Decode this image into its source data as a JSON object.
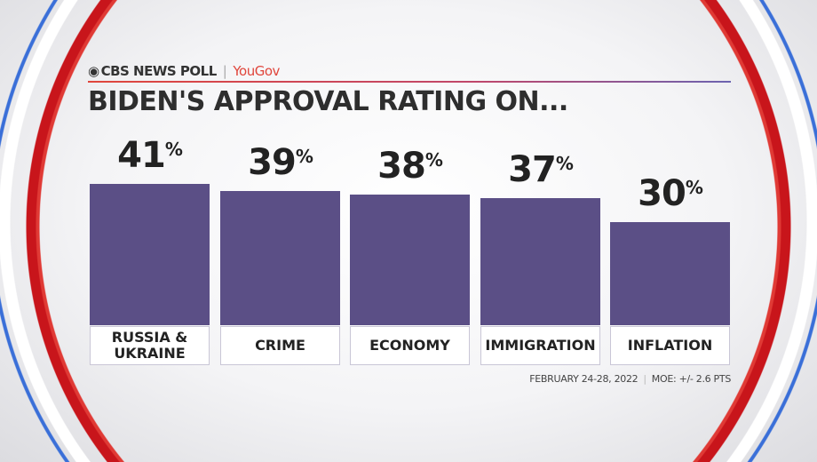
{
  "header": {
    "brand": "CBS NEWS POLL",
    "partner": "YouGov",
    "title": "BIDEN'S  APPROVAL RATING ON..."
  },
  "chart_data": {
    "type": "bar",
    "title": "BIDEN'S APPROVAL RATING ON...",
    "categories": [
      "RUSSIA & UKRAINE",
      "CRIME",
      "ECONOMY",
      "IMMIGRATION",
      "INFLATION"
    ],
    "values": [
      41,
      39,
      38,
      37,
      30
    ],
    "unit": "%",
    "color": "#5b4f86",
    "xlabel": "",
    "ylabel": ""
  },
  "footer": {
    "dates": "FEBRUARY 24-28, 2022",
    "moe": "MOE: +/- 2.6 PTS"
  }
}
